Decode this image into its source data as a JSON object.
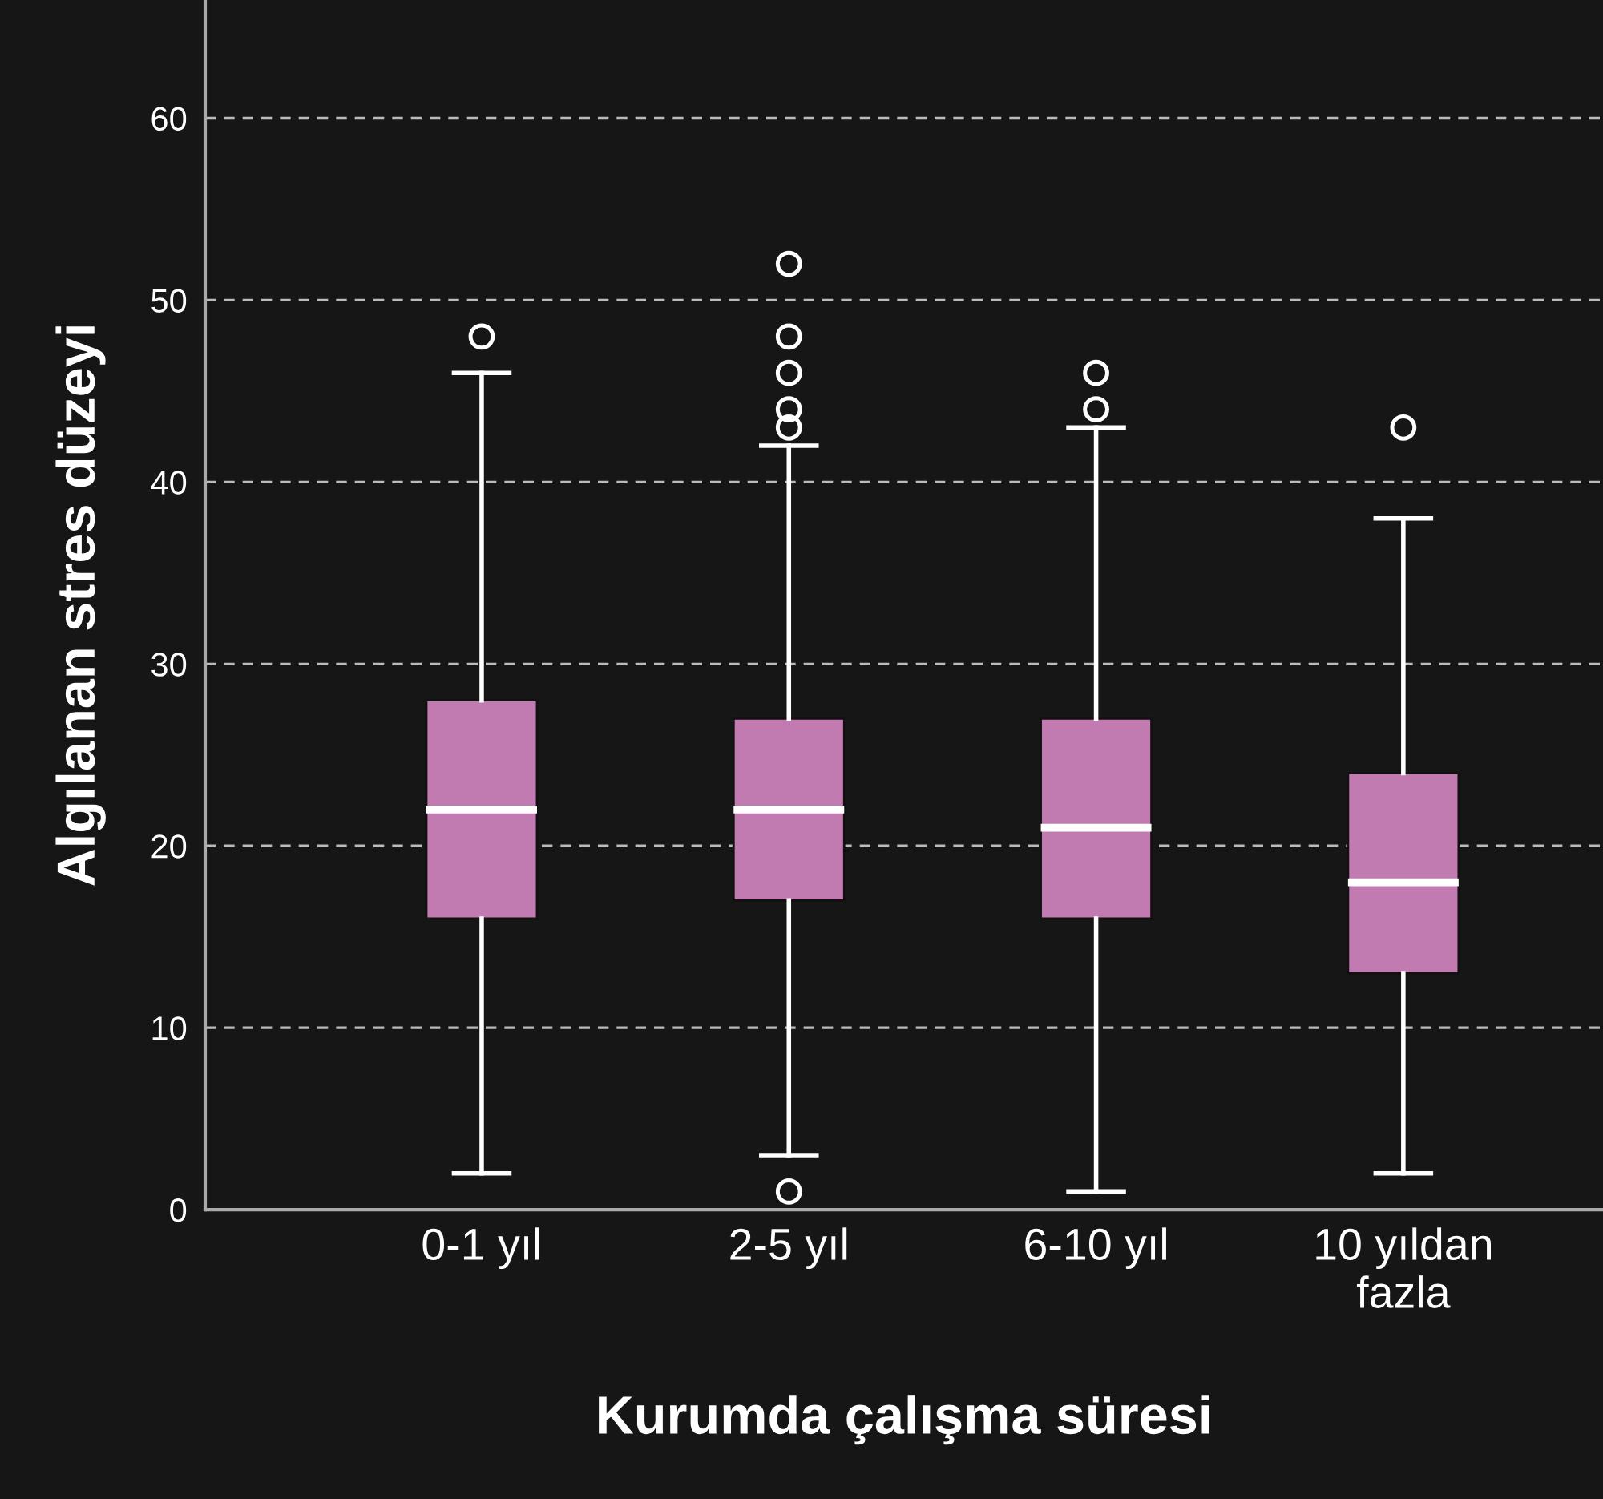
{
  "chart_data": {
    "type": "box",
    "xlabel": "Kurumda çalışma süresi",
    "ylabel": "Algılanan stres düzeyi",
    "categories": [
      "0-1 yıl",
      "2-5 yıl",
      "6-10 yıl",
      "10 yıldan\nfazla"
    ],
    "boxes": [
      {
        "low": 2,
        "q1": 16,
        "median": 22,
        "q3": 28,
        "high": 46,
        "outliers": [
          48
        ]
      },
      {
        "low": 3,
        "q1": 17,
        "median": 22,
        "q3": 27,
        "high": 42,
        "outliers": [
          1,
          43,
          44,
          46,
          48,
          52
        ]
      },
      {
        "low": 1,
        "q1": 16,
        "median": 21,
        "q3": 27,
        "high": 43,
        "outliers": [
          44,
          46
        ]
      },
      {
        "low": 2,
        "q1": 13,
        "median": 18,
        "q3": 24,
        "high": 38,
        "outliers": [
          43
        ]
      }
    ],
    "color": "#c27bb0",
    "ylim": [
      0,
      66.5
    ],
    "yticks": [
      0,
      10,
      20,
      30,
      40,
      50,
      60
    ],
    "grid": "y"
  }
}
